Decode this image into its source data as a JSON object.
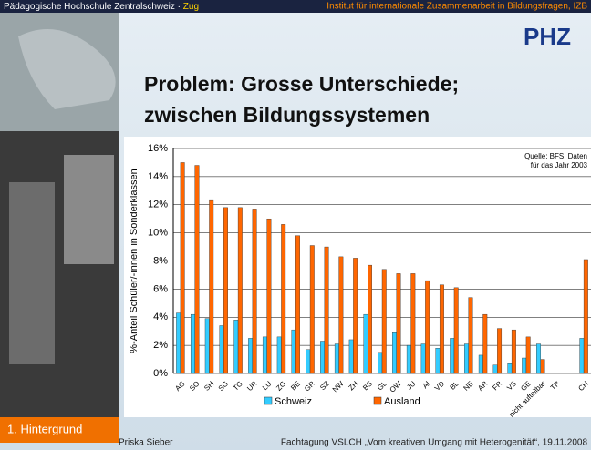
{
  "header": {
    "left": "Pädagogische Hochschule Zentralschweiz ·",
    "left_highlight": "Zug",
    "right": "Institut für internationale Zusammenarbeit in Bildungsfragen, IZB"
  },
  "logo": "PHZ",
  "title_lines": [
    "Problem: Grosse Unterschiede;",
    "zwischen Bildungssystemen"
  ],
  "section": "1. Hintergrund",
  "footer": {
    "author": "Priska Sieber",
    "event": "Fachtagung VSLCH „Vom kreativen Umgang mit Heterogenität“, 19.11.2008"
  },
  "chart_data": {
    "type": "bar",
    "y_label": "%-Anteil Schüler/-innen in Sonderklassen",
    "note_lines": [
      "Quelle: BFS, Daten",
      "für das Jahr 2003"
    ],
    "categories": [
      "AG",
      "SO",
      "SH",
      "SG",
      "TG",
      "UR",
      "LU",
      "ZG",
      "BE",
      "GR",
      "SZ",
      "NW",
      "ZH",
      "BS",
      "GL",
      "OW",
      "JU",
      "AI",
      "VD",
      "BL",
      "NE",
      "AR",
      "FR",
      "VS",
      "GE",
      "nicht aufteilbar",
      "TI*",
      null,
      "CH"
    ],
    "series": [
      {
        "name": "Schweiz",
        "color": "#33ccff",
        "values": [
          4.3,
          4.2,
          3.9,
          3.4,
          3.8,
          2.5,
          2.6,
          2.6,
          3.1,
          1.7,
          2.3,
          2.1,
          2.4,
          4.2,
          1.5,
          2.9,
          2.0,
          2.1,
          1.8,
          2.5,
          2.1,
          1.3,
          0.6,
          0.7,
          1.1,
          2.1,
          0,
          null,
          2.5
        ]
      },
      {
        "name": "Ausland",
        "color": "#ff6600",
        "values": [
          15.0,
          14.8,
          12.3,
          11.8,
          11.8,
          11.7,
          11.0,
          10.6,
          9.8,
          9.1,
          9.0,
          8.3,
          8.2,
          7.7,
          7.4,
          7.1,
          7.1,
          6.6,
          6.3,
          6.1,
          5.4,
          4.2,
          3.2,
          3.1,
          2.6,
          1.0,
          0,
          null,
          8.1
        ]
      }
    ],
    "ylim": [
      0,
      16
    ],
    "yticks": [
      {
        "value": 0,
        "label": "0%"
      },
      {
        "value": 2,
        "label": "2%"
      },
      {
        "value": 4,
        "label": "4%"
      },
      {
        "value": 6,
        "label": "6%"
      },
      {
        "value": 8,
        "label": "8%"
      },
      {
        "value": 10,
        "label": "10%"
      },
      {
        "value": 12,
        "label": "12%"
      },
      {
        "value": 14,
        "label": "14%"
      },
      {
        "value": 16,
        "label": "16%"
      }
    ],
    "grid": true
  }
}
